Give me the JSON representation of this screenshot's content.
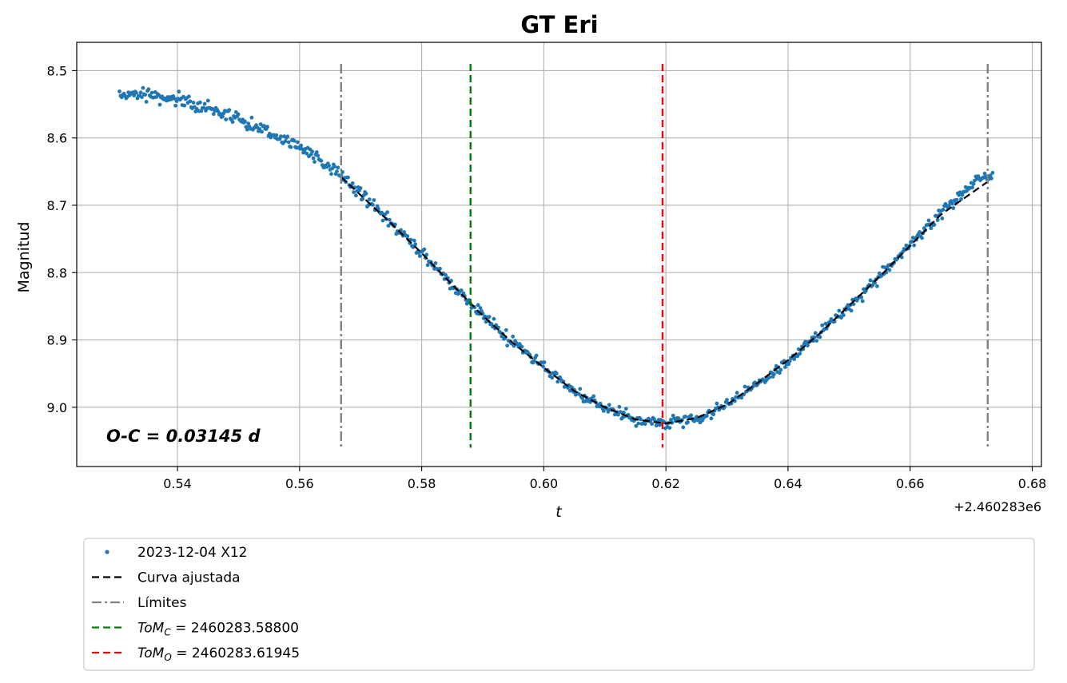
{
  "chart_data": {
    "type": "scatter",
    "title": "GT Eri",
    "xlabel": "t",
    "ylabel": "Magnitud",
    "x_offset_label": "+2.460283e6",
    "xlim": [
      0.5235,
      0.6815
    ],
    "ylim": [
      9.088,
      8.458
    ],
    "y_inverted": true,
    "grid": true,
    "x_ticks": [
      0.54,
      0.56,
      0.58,
      0.6,
      0.62,
      0.64,
      0.66,
      0.68
    ],
    "x_tick_labels": [
      "0.54",
      "0.56",
      "0.58",
      "0.60",
      "0.62",
      "0.64",
      "0.66",
      "0.68"
    ],
    "y_ticks": [
      8.5,
      8.6,
      8.7,
      8.8,
      8.9,
      9.0
    ],
    "y_tick_labels": [
      "8.5",
      "8.6",
      "8.7",
      "8.8",
      "8.9",
      "9.0"
    ],
    "annotation": "O-C = 0.03145 d",
    "legend_position": "below",
    "series": [
      {
        "name": "2023-12-04 X12",
        "kind": "scatter",
        "color": "#1f77b4",
        "x_range": [
          0.5305,
          0.6735
        ],
        "n_points": 780,
        "x": [
          0.531,
          0.535,
          0.54,
          0.545,
          0.55,
          0.555,
          0.56,
          0.565,
          0.57,
          0.575,
          0.58,
          0.585,
          0.59,
          0.595,
          0.6,
          0.605,
          0.61,
          0.615,
          0.62,
          0.625,
          0.63,
          0.635,
          0.64,
          0.645,
          0.65,
          0.655,
          0.66,
          0.665,
          0.67,
          0.673
        ],
        "y": [
          8.535,
          8.535,
          8.543,
          8.555,
          8.572,
          8.592,
          8.613,
          8.643,
          8.683,
          8.726,
          8.77,
          8.818,
          8.863,
          8.905,
          8.94,
          8.975,
          9.0,
          9.018,
          9.024,
          9.018,
          8.997,
          8.965,
          8.93,
          8.893,
          8.85,
          8.806,
          8.759,
          8.712,
          8.67,
          8.655
        ],
        "noise": 0.006
      },
      {
        "name": "Curva ajustada",
        "kind": "line",
        "dash": "dashed",
        "color": "#000000",
        "x": [
          0.5668,
          0.575,
          0.58,
          0.585,
          0.59,
          0.595,
          0.6,
          0.605,
          0.61,
          0.615,
          0.62,
          0.625,
          0.63,
          0.635,
          0.64,
          0.645,
          0.65,
          0.655,
          0.66,
          0.665,
          0.6727
        ],
        "y": [
          8.658,
          8.727,
          8.771,
          8.818,
          8.864,
          8.905,
          8.941,
          8.976,
          9.0,
          9.018,
          9.024,
          9.016,
          8.996,
          8.964,
          8.93,
          8.892,
          8.849,
          8.806,
          8.76,
          8.714,
          8.665
        ]
      },
      {
        "name": "Límites",
        "kind": "vline",
        "dash": "dashdot",
        "color": "#808080",
        "x_values": [
          0.5668,
          0.6727
        ],
        "y_span": [
          8.49,
          9.06
        ]
      },
      {
        "name": "ToM_C = 2460283.58800",
        "kind": "vline",
        "dash": "dashed",
        "color": "#008000",
        "x_values": [
          0.588
        ],
        "y_span": [
          8.49,
          9.06
        ]
      },
      {
        "name": "ToM_O = 2460283.61945",
        "kind": "vline",
        "dash": "dashed",
        "color": "#ff0000",
        "x_values": [
          0.61945
        ],
        "y_span": [
          8.49,
          9.06
        ]
      }
    ],
    "legend": [
      {
        "label": "2023-12-04 X12",
        "style": "dot",
        "color": "#1f77b4"
      },
      {
        "label": "Curva ajustada",
        "style": "dashed",
        "color": "#000000"
      },
      {
        "label": "Límites",
        "style": "dashdot",
        "color": "#808080"
      },
      {
        "label_math_base": "ToM",
        "label_math_sub": "C",
        "label_value": " = 2460283.58800",
        "style": "dashed",
        "color": "#008000"
      },
      {
        "label_math_base": "ToM",
        "label_math_sub": "O",
        "label_value": " = 2460283.61945",
        "style": "dashed",
        "color": "#ff0000"
      }
    ]
  }
}
